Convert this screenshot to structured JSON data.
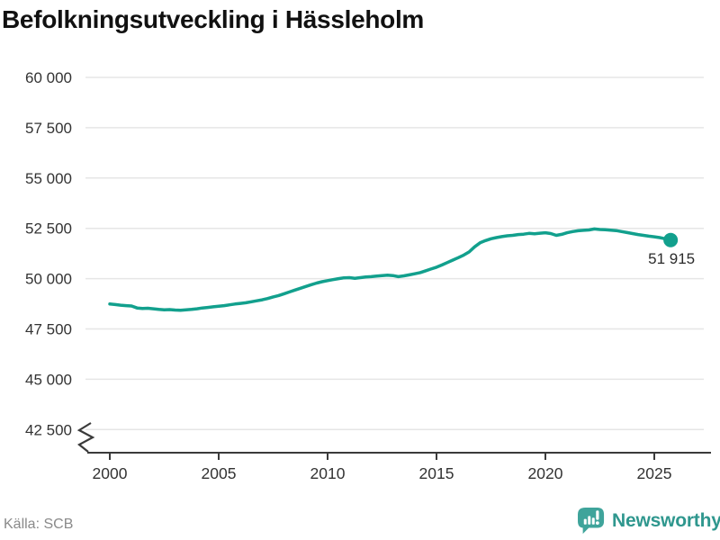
{
  "header": {
    "title": "Befolkningsutveckling i Hässleholm"
  },
  "footer": {
    "source": "Källa: SCB",
    "brand": {
      "wordmark": "Newsworthy",
      "logo_icon": "newsworthy-logo-icon"
    }
  },
  "colors": {
    "line": "#12A08D",
    "grid": "#E6E6E6",
    "axis": "#3A3A3A",
    "tick_label": "#333333",
    "endpoint_label": "#2B2B2B",
    "title": "#111111",
    "source": "#8A8A8A",
    "brand_text": "#2F978E",
    "brand_logo": "#3FA49B"
  },
  "chart_data": {
    "type": "line",
    "title": "Befolkningsutveckling i Hässleholm",
    "xlabel": "",
    "ylabel": "",
    "grid": "horizontal",
    "legend": "none",
    "axis_break": true,
    "xlim": [
      2000,
      2026.5
    ],
    "ylim": [
      42500,
      60000
    ],
    "x_ticks": [
      2000,
      2005,
      2010,
      2015,
      2020,
      2025
    ],
    "y_ticks": [
      42500,
      45000,
      47500,
      50000,
      52500,
      55000,
      57500,
      60000
    ],
    "y_tick_labels": [
      "42 500",
      "45 000",
      "47 500",
      "50 000",
      "52 500",
      "55 000",
      "57 500",
      "60 000"
    ],
    "series": [
      {
        "name": "Befolkning",
        "color": "#12A08D",
        "x": [
          2000.0,
          2000.25,
          2000.5,
          2000.75,
          2001.0,
          2001.25,
          2001.5,
          2001.75,
          2002.0,
          2002.25,
          2002.5,
          2002.75,
          2003.0,
          2003.25,
          2003.5,
          2003.75,
          2004.0,
          2004.25,
          2004.5,
          2004.75,
          2005.0,
          2005.25,
          2005.5,
          2005.75,
          2006.0,
          2006.25,
          2006.5,
          2006.75,
          2007.0,
          2007.25,
          2007.5,
          2007.75,
          2008.0,
          2008.25,
          2008.5,
          2008.75,
          2009.0,
          2009.25,
          2009.5,
          2009.75,
          2010.0,
          2010.25,
          2010.5,
          2010.75,
          2011.0,
          2011.25,
          2011.5,
          2011.75,
          2012.0,
          2012.25,
          2012.5,
          2012.75,
          2013.0,
          2013.25,
          2013.5,
          2013.75,
          2014.0,
          2014.25,
          2014.5,
          2014.75,
          2015.0,
          2015.25,
          2015.5,
          2015.75,
          2016.0,
          2016.25,
          2016.5,
          2016.75,
          2017.0,
          2017.25,
          2017.5,
          2017.75,
          2018.0,
          2018.25,
          2018.5,
          2018.75,
          2019.0,
          2019.25,
          2019.5,
          2019.75,
          2020.0,
          2020.25,
          2020.5,
          2020.75,
          2021.0,
          2021.25,
          2021.5,
          2021.75,
          2022.0,
          2022.25,
          2022.5,
          2022.75,
          2023.0,
          2023.25,
          2023.5,
          2023.75,
          2024.0,
          2024.25,
          2024.5,
          2024.75,
          2025.0,
          2025.25,
          2025.5,
          2025.75
        ],
        "values": [
          48740,
          48710,
          48680,
          48660,
          48640,
          48540,
          48520,
          48530,
          48500,
          48470,
          48450,
          48460,
          48440,
          48430,
          48450,
          48470,
          48500,
          48540,
          48570,
          48600,
          48630,
          48660,
          48700,
          48740,
          48770,
          48800,
          48850,
          48900,
          48950,
          49010,
          49090,
          49160,
          49250,
          49340,
          49430,
          49520,
          49610,
          49700,
          49780,
          49850,
          49900,
          49950,
          50000,
          50040,
          50050,
          50020,
          50050,
          50080,
          50100,
          50130,
          50150,
          50170,
          50150,
          50100,
          50140,
          50190,
          50240,
          50300,
          50390,
          50480,
          50570,
          50680,
          50800,
          50920,
          51040,
          51170,
          51330,
          51580,
          51780,
          51890,
          51980,
          52040,
          52090,
          52130,
          52150,
          52190,
          52210,
          52250,
          52230,
          52260,
          52280,
          52240,
          52150,
          52200,
          52280,
          52340,
          52380,
          52400,
          52420,
          52470,
          52440,
          52430,
          52410,
          52390,
          52340,
          52290,
          52240,
          52190,
          52150,
          52110,
          52080,
          52040,
          51980,
          51915
        ]
      }
    ],
    "endpoint": {
      "x": 2025.75,
      "value": 51915,
      "label": "51 915"
    }
  }
}
